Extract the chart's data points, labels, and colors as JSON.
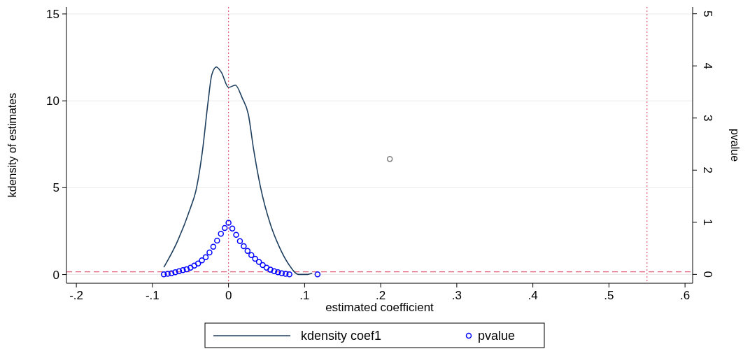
{
  "chart_data": {
    "type": "line",
    "xlabel": "estimated coefficient",
    "ylabel": "kdensity of estimates",
    "y2label": "pvalue",
    "xlim": [
      -0.213,
      0.61
    ],
    "xticks": [
      {
        "value": -0.2,
        "label": "-.2"
      },
      {
        "value": -0.1,
        "label": "-.1"
      },
      0,
      {
        "value": 0.1,
        "label": ".1"
      },
      {
        "value": 0.2,
        "label": ".2"
      },
      {
        "value": 0.3,
        "label": ".3"
      },
      {
        "value": 0.4,
        "label": ".4"
      },
      {
        "value": 0.5,
        "label": ".5"
      },
      {
        "value": 0.6,
        "label": ".6"
      }
    ],
    "ylim": [
      -0.5,
      15.4
    ],
    "yticks": [
      0,
      5,
      10,
      15
    ],
    "y2lim": [
      -0.17,
      5.13
    ],
    "y2ticks": [
      0,
      1,
      2,
      3,
      4,
      5
    ],
    "grid": "y",
    "legend": "bottom",
    "series": [
      {
        "name": "kdensity coef1",
        "color": "#1f3f5f",
        "marker": "none",
        "x": [
          -0.085,
          -0.068,
          -0.05,
          -0.043,
          -0.034,
          -0.027,
          -0.022,
          -0.016,
          -0.0095,
          0,
          0.009,
          0.018,
          0.026,
          0.033,
          0.042,
          0.055,
          0.067,
          0.079,
          0.092,
          0.104,
          0.11
        ],
        "values": [
          0.42,
          1.83,
          3.84,
          4.8,
          7.2,
          9.9,
          11.5,
          11.95,
          11.65,
          10.77,
          10.9,
          10.16,
          9.23,
          7.2,
          5.04,
          2.9,
          1.57,
          0.6,
          0.01,
          0.01,
          0.08
        ]
      },
      {
        "name": "pvalue",
        "type": "scatter",
        "axis": "y2",
        "color": "#0000ff",
        "marker": "circle",
        "x": [
          -0.085,
          -0.08,
          -0.075,
          -0.07,
          -0.065,
          -0.06,
          -0.055,
          -0.05,
          -0.045,
          -0.04,
          -0.035,
          -0.03,
          -0.025,
          -0.02,
          -0.015,
          -0.01,
          -0.005,
          0,
          0.005,
          0.01,
          0.015,
          0.02,
          0.025,
          0.03,
          0.035,
          0.04,
          0.045,
          0.05,
          0.055,
          0.06,
          0.065,
          0.07,
          0.075,
          0.08,
          0.117
        ],
        "values": [
          0,
          0.01,
          0.02,
          0.04,
          0.06,
          0.08,
          0.1,
          0.13,
          0.17,
          0.21,
          0.27,
          0.33,
          0.42,
          0.53,
          0.65,
          0.78,
          0.89,
          0.99,
          0.88,
          0.76,
          0.64,
          0.54,
          0.45,
          0.37,
          0.3,
          0.24,
          0.18,
          0.13,
          0.09,
          0.06,
          0.04,
          0.02,
          0.01,
          0,
          0
        ]
      },
      {
        "type": "scatter",
        "color": "#808080",
        "marker": "circle",
        "x": [
          0.212
        ],
        "values": [
          6.65
        ]
      }
    ],
    "ref_lines": [
      {
        "axis": "x",
        "value": 0,
        "color": "#e0607a",
        "line_style": "dotted"
      },
      {
        "axis": "x",
        "value": 0.55,
        "color": "#e0607a",
        "line_style": "dotted"
      },
      {
        "axis": "y2",
        "value": 0.05,
        "color": "#e0607a",
        "line_style": "dashed"
      }
    ]
  }
}
